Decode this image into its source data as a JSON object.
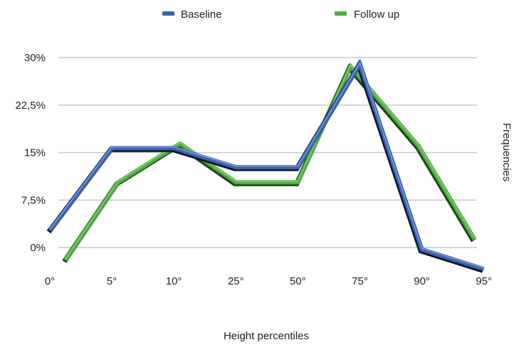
{
  "chart_data": {
    "type": "line",
    "title": "",
    "xlabel": "Height percentiles",
    "ylabel": "Frequencies",
    "categories": [
      "0°",
      "5°",
      "10°",
      "25°",
      "50°",
      "75°",
      "90°",
      "95°"
    ],
    "y_ticks": [
      "0%",
      "7,5%",
      "15%",
      "22,5%",
      "30%"
    ],
    "y_tick_values": [
      0,
      7.5,
      15,
      22.5,
      30
    ],
    "ylim": [
      -3.5,
      30
    ],
    "grid": true,
    "legend_position": "top",
    "series": [
      {
        "name": "Baseline",
        "color": "#3a64b4",
        "shadow": "#0b1526",
        "x": [
          0,
          1,
          2,
          3,
          4,
          5,
          6,
          7
        ],
        "y": [
          2.7,
          15.7,
          15.7,
          12.7,
          12.7,
          29.0,
          -0.3,
          -3.4
        ]
      },
      {
        "name": "Follow up",
        "color": "#4bae3c",
        "shadow": "#1a3f16",
        "x": [
          0.25,
          1.1,
          2.1,
          3.0,
          4.0,
          4.85,
          5.95,
          6.85
        ],
        "y": [
          -2.0,
          10.3,
          16.4,
          10.3,
          10.3,
          28.6,
          16.0,
          1.3
        ]
      }
    ]
  }
}
